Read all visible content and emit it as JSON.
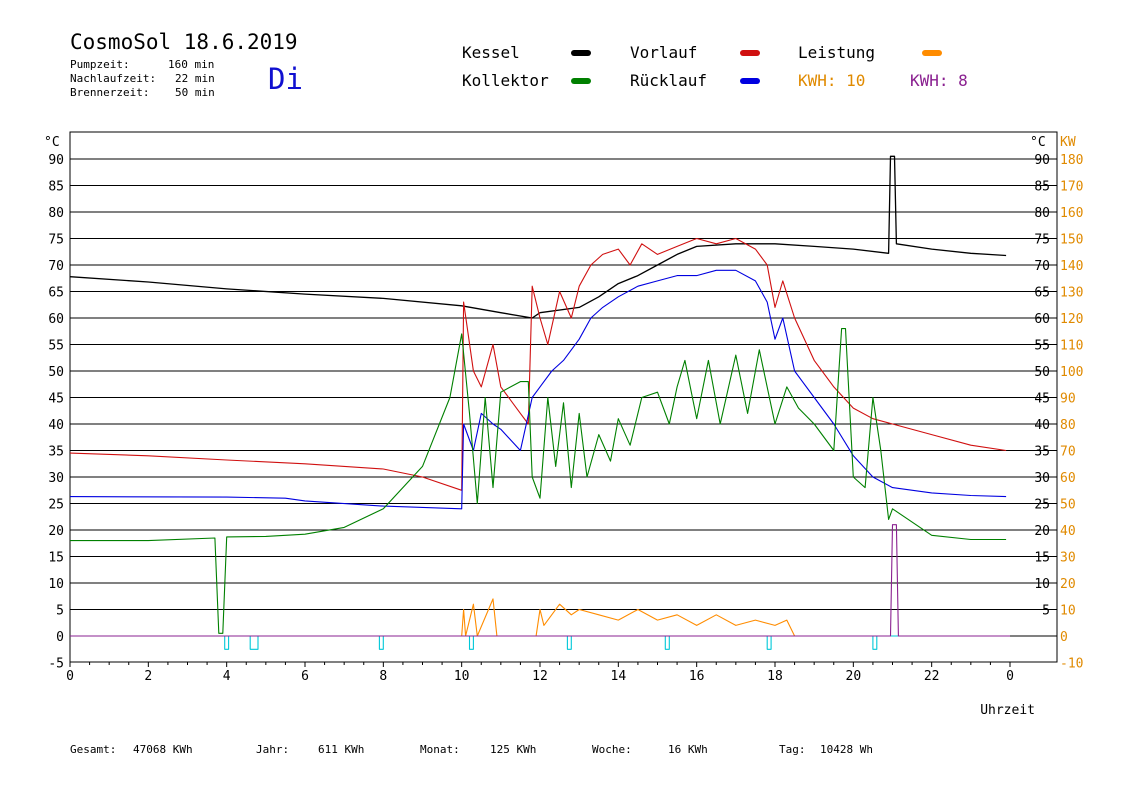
{
  "header": {
    "title": "CosmoSol 18.6.2019",
    "day": "Di",
    "info": [
      {
        "label": "Pumpzeit:",
        "value": "160 min"
      },
      {
        "label": "Nachlaufzeit:",
        "value": "22 min"
      },
      {
        "label": "Brennerzeit:",
        "value": "50 min"
      }
    ]
  },
  "legend": [
    {
      "label": "Kessel",
      "color": "#000000"
    },
    {
      "label": "Vorlauf",
      "color": "#d01010"
    },
    {
      "label": "Leistung",
      "color": "#ff8c00"
    },
    {
      "label": "Kollektor",
      "color": "#008000"
    },
    {
      "label": "Rücklauf",
      "color": "#0000e0"
    }
  ],
  "kwh": [
    {
      "label": "KWH: 10",
      "color": "#e08a00"
    },
    {
      "label": "KWH: 8",
      "color": "#8a2090"
    }
  ],
  "footer": [
    {
      "label": "Gesamt:",
      "value": "47068 KWh"
    },
    {
      "label": "Jahr:",
      "value": "611 KWh"
    },
    {
      "label": "Monat:",
      "value": "125 KWh"
    },
    {
      "label": "Woche:",
      "value": "16 KWh"
    },
    {
      "label": "Tag:",
      "value": "10428 Wh"
    }
  ],
  "chart_data": {
    "type": "line",
    "xlabel": "Uhrzeit",
    "ylabel_left": "°C",
    "ylabel_right_unit": "°C",
    "ylabel_right_kw": "KW",
    "xlim": [
      0,
      24
    ],
    "ylim": [
      -5,
      90
    ],
    "x_ticks": [
      "0",
      "2",
      "4",
      "6",
      "8",
      "10",
      "12",
      "14",
      "16",
      "18",
      "20",
      "22",
      "0"
    ],
    "y_ticks_left": [
      "90",
      "85",
      "80",
      "75",
      "70",
      "65",
      "60",
      "55",
      "50",
      "45",
      "40",
      "35",
      "30",
      "25",
      "20",
      "15",
      "10",
      "5",
      "0",
      "-5"
    ],
    "y_ticks_right_temp": [
      "90",
      "85",
      "80",
      "75",
      "70",
      "65",
      "60",
      "55",
      "50",
      "45",
      "40",
      "35",
      "30",
      "25",
      "20",
      "15",
      "10",
      "5"
    ],
    "y_ticks_right_kw": [
      "180",
      "170",
      "160",
      "150",
      "140",
      "130",
      "120",
      "110",
      "100",
      "90",
      "80",
      "70",
      "60",
      "50",
      "40",
      "30",
      "20",
      "10",
      "0",
      "-10"
    ],
    "grid": true,
    "series": [
      {
        "name": "Kessel",
        "color": "#000000",
        "points": [
          [
            0,
            67.8
          ],
          [
            2,
            66.8
          ],
          [
            4,
            65.5
          ],
          [
            6,
            64.5
          ],
          [
            8,
            63.7
          ],
          [
            10,
            62.3
          ],
          [
            11,
            61
          ],
          [
            11.8,
            60
          ],
          [
            12,
            61
          ],
          [
            13,
            62
          ],
          [
            13.5,
            64
          ],
          [
            14,
            66.5
          ],
          [
            14.5,
            68
          ],
          [
            15,
            70
          ],
          [
            15.5,
            72
          ],
          [
            16,
            73.5
          ],
          [
            17,
            74
          ],
          [
            18,
            74
          ],
          [
            19,
            73.5
          ],
          [
            20,
            73
          ],
          [
            20.9,
            72.2
          ],
          [
            20.95,
            90.5
          ],
          [
            21.05,
            90.5
          ],
          [
            21.1,
            74
          ],
          [
            22,
            73
          ],
          [
            23,
            72.2
          ],
          [
            23.9,
            71.8
          ]
        ]
      },
      {
        "name": "Vorlauf",
        "color": "#d01010",
        "points": [
          [
            0,
            34.5
          ],
          [
            2,
            34
          ],
          [
            4,
            33.2
          ],
          [
            6,
            32.5
          ],
          [
            8,
            31.5
          ],
          [
            9,
            30
          ],
          [
            10,
            27.5
          ],
          [
            10.05,
            63
          ],
          [
            10.3,
            50
          ],
          [
            10.5,
            47
          ],
          [
            10.8,
            55
          ],
          [
            11,
            47
          ],
          [
            11.5,
            42
          ],
          [
            11.7,
            40
          ],
          [
            11.8,
            66
          ],
          [
            12,
            60
          ],
          [
            12.2,
            55
          ],
          [
            12.5,
            65
          ],
          [
            12.8,
            60
          ],
          [
            13,
            66
          ],
          [
            13.3,
            70
          ],
          [
            13.6,
            72
          ],
          [
            14,
            73
          ],
          [
            14.3,
            70
          ],
          [
            14.6,
            74
          ],
          [
            15,
            72
          ],
          [
            15.5,
            73.5
          ],
          [
            16,
            75
          ],
          [
            16.5,
            74
          ],
          [
            17,
            75
          ],
          [
            17.5,
            73
          ],
          [
            17.8,
            70
          ],
          [
            18,
            62
          ],
          [
            18.2,
            67
          ],
          [
            18.5,
            60
          ],
          [
            19,
            52
          ],
          [
            19.5,
            47
          ],
          [
            20,
            43
          ],
          [
            20.5,
            41
          ],
          [
            21,
            40
          ],
          [
            22,
            38
          ],
          [
            23,
            36
          ],
          [
            23.9,
            35
          ]
        ]
      },
      {
        "name": "Rücklauf",
        "color": "#0000e0",
        "points": [
          [
            0,
            26.3
          ],
          [
            4,
            26.2
          ],
          [
            5.5,
            26
          ],
          [
            6,
            25.5
          ],
          [
            8,
            24.5
          ],
          [
            10,
            24
          ],
          [
            10.05,
            40
          ],
          [
            10.3,
            35
          ],
          [
            10.5,
            42
          ],
          [
            10.8,
            40
          ],
          [
            11,
            39
          ],
          [
            11.5,
            35
          ],
          [
            11.8,
            45
          ],
          [
            12,
            47
          ],
          [
            12.3,
            50
          ],
          [
            12.6,
            52
          ],
          [
            13,
            56
          ],
          [
            13.3,
            60
          ],
          [
            13.6,
            62
          ],
          [
            14,
            64
          ],
          [
            14.5,
            66
          ],
          [
            15,
            67
          ],
          [
            15.5,
            68
          ],
          [
            16,
            68
          ],
          [
            16.5,
            69
          ],
          [
            17,
            69
          ],
          [
            17.5,
            67
          ],
          [
            17.8,
            63
          ],
          [
            18,
            56
          ],
          [
            18.2,
            60
          ],
          [
            18.5,
            50
          ],
          [
            19,
            45
          ],
          [
            19.5,
            40
          ],
          [
            20,
            34
          ],
          [
            20.5,
            30
          ],
          [
            21,
            28
          ],
          [
            22,
            27
          ],
          [
            23,
            26.5
          ],
          [
            23.9,
            26.3
          ]
        ]
      },
      {
        "name": "Kollektor",
        "color": "#008000",
        "points": [
          [
            0,
            18
          ],
          [
            2,
            18
          ],
          [
            3.7,
            18.5
          ],
          [
            3.8,
            0.5
          ],
          [
            3.9,
            0.5
          ],
          [
            4,
            18.7
          ],
          [
            5,
            18.8
          ],
          [
            6,
            19.2
          ],
          [
            7,
            20.5
          ],
          [
            8,
            24
          ],
          [
            9,
            32
          ],
          [
            9.7,
            45
          ],
          [
            10,
            57
          ],
          [
            10.2,
            42
          ],
          [
            10.4,
            25
          ],
          [
            10.6,
            45
          ],
          [
            10.8,
            28
          ],
          [
            11,
            46
          ],
          [
            11.5,
            48
          ],
          [
            11.7,
            48
          ],
          [
            11.8,
            30
          ],
          [
            12,
            26
          ],
          [
            12.2,
            45
          ],
          [
            12.4,
            32
          ],
          [
            12.6,
            44
          ],
          [
            12.8,
            28
          ],
          [
            13,
            42
          ],
          [
            13.2,
            30
          ],
          [
            13.5,
            38
          ],
          [
            13.8,
            33
          ],
          [
            14,
            41
          ],
          [
            14.3,
            36
          ],
          [
            14.6,
            45
          ],
          [
            15,
            46
          ],
          [
            15.3,
            40
          ],
          [
            15.5,
            47
          ],
          [
            15.7,
            52
          ],
          [
            16,
            41
          ],
          [
            16.3,
            52
          ],
          [
            16.6,
            40
          ],
          [
            17,
            53
          ],
          [
            17.3,
            42
          ],
          [
            17.6,
            54
          ],
          [
            18,
            40
          ],
          [
            18.3,
            47
          ],
          [
            18.6,
            43
          ],
          [
            19,
            40
          ],
          [
            19.5,
            35
          ],
          [
            19.7,
            58
          ],
          [
            19.8,
            58
          ],
          [
            20,
            30
          ],
          [
            20.3,
            28
          ],
          [
            20.5,
            45
          ],
          [
            20.7,
            35
          ],
          [
            20.9,
            22
          ],
          [
            21,
            24
          ],
          [
            22,
            19
          ],
          [
            23,
            18.2
          ],
          [
            23.9,
            18.2
          ]
        ]
      },
      {
        "name": "Leistung",
        "color": "#ff8c00",
        "points": [
          [
            0,
            0
          ],
          [
            10,
            0
          ],
          [
            10.05,
            5
          ],
          [
            10.1,
            0
          ],
          [
            10.3,
            6
          ],
          [
            10.4,
            0
          ],
          [
            10.8,
            7
          ],
          [
            10.9,
            0
          ],
          [
            11.9,
            0
          ],
          [
            12,
            5
          ],
          [
            12.1,
            2
          ],
          [
            12.5,
            6
          ],
          [
            12.8,
            4
          ],
          [
            13,
            5
          ],
          [
            13.5,
            4
          ],
          [
            14,
            3
          ],
          [
            14.5,
            5
          ],
          [
            15,
            3
          ],
          [
            15.5,
            4
          ],
          [
            16,
            2
          ],
          [
            16.5,
            4
          ],
          [
            17,
            2
          ],
          [
            17.5,
            3
          ],
          [
            18,
            2
          ],
          [
            18.3,
            3
          ],
          [
            18.5,
            0
          ],
          [
            24,
            0
          ]
        ]
      },
      {
        "name": "Pumpe",
        "color": "#00c8d8",
        "points": [
          [
            0,
            0
          ],
          [
            3.95,
            0
          ],
          [
            3.95,
            -2.5
          ],
          [
            4.05,
            -2.5
          ],
          [
            4.05,
            0
          ],
          [
            4.6,
            0
          ],
          [
            4.6,
            -2.5
          ],
          [
            4.8,
            -2.5
          ],
          [
            4.8,
            0
          ],
          [
            7.9,
            0
          ],
          [
            7.9,
            -2.5
          ],
          [
            8,
            -2.5
          ],
          [
            8,
            0
          ],
          [
            10.2,
            0
          ],
          [
            10.2,
            -2.5
          ],
          [
            10.3,
            -2.5
          ],
          [
            10.3,
            0
          ],
          [
            12.7,
            0
          ],
          [
            12.7,
            -2.5
          ],
          [
            12.8,
            -2.5
          ],
          [
            12.8,
            0
          ],
          [
            15.2,
            0
          ],
          [
            15.2,
            -2.5
          ],
          [
            15.3,
            -2.5
          ],
          [
            15.3,
            0
          ],
          [
            17.8,
            0
          ],
          [
            17.8,
            -2.5
          ],
          [
            17.9,
            -2.5
          ],
          [
            17.9,
            0
          ],
          [
            20.5,
            0
          ],
          [
            20.5,
            -2.5
          ],
          [
            20.6,
            -2.5
          ],
          [
            20.6,
            0
          ],
          [
            24,
            0
          ]
        ]
      },
      {
        "name": "Brenner",
        "color": "#8a2090",
        "points": [
          [
            0,
            0
          ],
          [
            20.95,
            0
          ],
          [
            21,
            21
          ],
          [
            21.1,
            21
          ],
          [
            21.15,
            0
          ],
          [
            24,
            0
          ]
        ]
      }
    ]
  }
}
